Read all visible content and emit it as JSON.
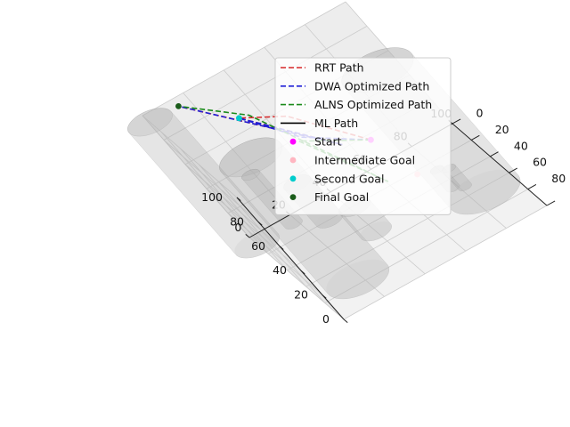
{
  "chart_data": {
    "type": "3d-line",
    "title": "",
    "xlabel": "",
    "ylabel": "",
    "zlabel": "",
    "xlim": [
      0,
      100
    ],
    "ylim": [
      0,
      100
    ],
    "zlim": [
      0,
      100
    ],
    "grid": true,
    "legend_position": "upper-right",
    "x_ticks": [
      "0",
      "20",
      "40",
      "60",
      "80",
      "100"
    ],
    "y_ticks": [
      "0",
      "20",
      "40",
      "60",
      "80",
      "100"
    ],
    "z_ticks": [
      "0",
      "20",
      "40",
      "60",
      "80",
      "100"
    ],
    "obstacles": [
      {
        "center": [
          18,
          76
        ],
        "radius": 14,
        "z": [
          0,
          100
        ]
      },
      {
        "center": [
          86,
          64
        ],
        "radius": 16,
        "z": [
          0,
          100
        ]
      },
      {
        "center": [
          0,
          8
        ],
        "radius": 10,
        "z": [
          0,
          100
        ]
      },
      {
        "center": [
          18,
          8
        ],
        "radius": 4,
        "z": [
          0,
          40
        ]
      },
      {
        "center": [
          30,
          20
        ],
        "radius": 6,
        "z": [
          0,
          30
        ]
      },
      {
        "center": [
          40,
          48
        ],
        "radius": 7,
        "z": [
          0,
          20
        ]
      },
      {
        "center": [
          78,
          48
        ],
        "radius": 3,
        "z": [
          0,
          15
        ]
      },
      {
        "center": [
          82,
          52
        ],
        "radius": 3,
        "z": [
          0,
          15
        ]
      }
    ],
    "series": [
      {
        "name": "RRT Path",
        "color": "#d62728",
        "style": "dashed",
        "points": [
          [
            66,
            32,
            40
          ],
          [
            46,
            20,
            70
          ],
          [
            28,
            42,
            100
          ],
          [
            54,
            48,
            58
          ],
          [
            14,
            8,
            100
          ]
        ]
      },
      {
        "name": "DWA Optimized Path",
        "color": "#1f1fd6",
        "style": "dashed",
        "points": [
          [
            66,
            32,
            40
          ],
          [
            44,
            28,
            60
          ],
          [
            28,
            42,
            100
          ],
          [
            54,
            48,
            58
          ],
          [
            14,
            8,
            100
          ]
        ]
      },
      {
        "name": "ALNS Optimized Path",
        "color": "#1a8a1a",
        "style": "dashed",
        "points": [
          [
            66,
            32,
            40
          ],
          [
            42,
            30,
            60
          ],
          [
            58,
            54,
            28
          ],
          [
            32,
            44,
            100
          ],
          [
            14,
            8,
            100
          ]
        ]
      },
      {
        "name": "ML Path",
        "color": "#000000",
        "style": "solid",
        "points": []
      }
    ],
    "goals": [
      {
        "name": "Start",
        "color": "#ff00ff",
        "point": [
          66,
          32,
          40
        ]
      },
      {
        "name": "Intermediate Goal",
        "color": "#ffb6c1",
        "point": [
          70,
          50,
          20
        ]
      },
      {
        "name": "Second Goal",
        "color": "#00cccc",
        "point": [
          28,
          42,
          100
        ]
      },
      {
        "name": "Final Goal",
        "color": "#1a5c1a",
        "point": [
          14,
          8,
          100
        ]
      }
    ]
  }
}
